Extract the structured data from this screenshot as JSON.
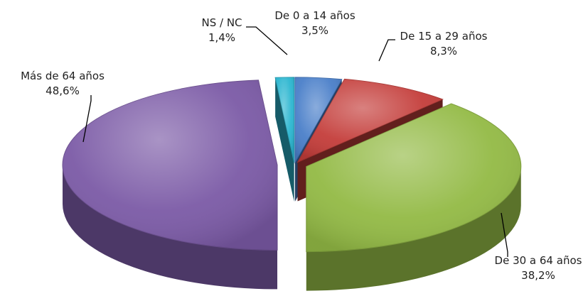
{
  "chart_data": {
    "type": "pie",
    "style": "3d-exploded",
    "title": "",
    "legend": "none",
    "slices": [
      {
        "name": "De 0 a 14 años",
        "value": 3.5,
        "label": "3,5%",
        "color": "#4a7fc9"
      },
      {
        "name": "De 15 a 29 años",
        "value": 8.3,
        "label": "8,3%",
        "color": "#c43d3a"
      },
      {
        "name": "De 30 a 64 años",
        "value": 38.2,
        "label": "38,2%",
        "color": "#93ba45"
      },
      {
        "name": "Más de 64 años",
        "value": 48.6,
        "label": "48,6%",
        "color": "#7b5aa6"
      },
      {
        "name": "NS / NC",
        "value": 1.4,
        "label": "1,4%",
        "color": "#2bb6d0"
      }
    ]
  }
}
